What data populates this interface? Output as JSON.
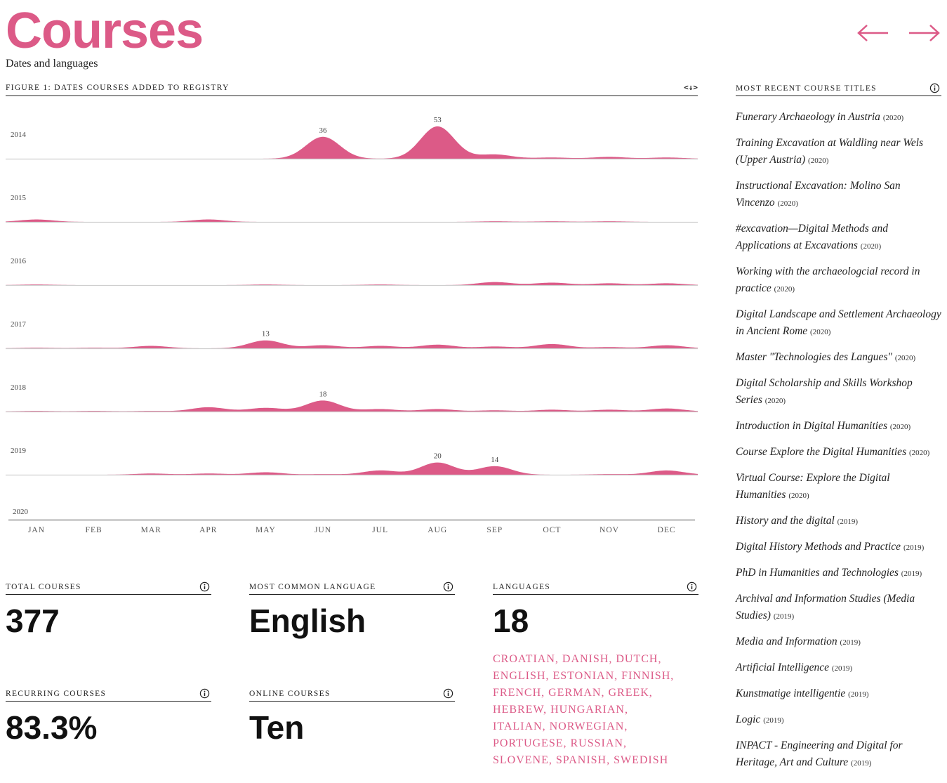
{
  "header": {
    "title": "Courses",
    "subtitle": "Dates and languages"
  },
  "nav": {
    "prev_icon": "arrow-left-icon",
    "next_icon": "arrow-right-icon"
  },
  "figure": {
    "label": "Figure 1: Dates courses added to registry",
    "embed_icon": "<↓>"
  },
  "colors": {
    "accent": "#dc5a87",
    "text": "#222222",
    "baseline": "#cfcfcf"
  },
  "chart_data": {
    "type": "area",
    "title": "",
    "categories": [
      "JAN",
      "FEB",
      "MAR",
      "APR",
      "MAY",
      "JUN",
      "JUL",
      "AUG",
      "SEP",
      "OCT",
      "NOV",
      "DEC"
    ],
    "series": [
      {
        "name": "2014",
        "values": [
          0,
          0,
          0,
          0,
          0,
          36,
          0,
          53,
          7,
          2,
          3,
          2
        ]
      },
      {
        "name": "2015",
        "values": [
          4,
          0,
          0,
          4,
          0,
          0,
          0,
          0,
          1,
          1,
          1,
          0
        ]
      },
      {
        "name": "2016",
        "values": [
          1,
          0,
          0,
          0,
          1,
          0,
          1,
          0,
          5,
          4,
          3,
          3
        ]
      },
      {
        "name": "2017",
        "values": [
          1,
          1,
          4,
          0,
          13,
          5,
          4,
          6,
          3,
          7,
          2,
          5
        ]
      },
      {
        "name": "2018",
        "values": [
          1,
          1,
          1,
          7,
          6,
          18,
          4,
          4,
          2,
          3,
          3,
          5
        ]
      },
      {
        "name": "2019",
        "values": [
          0,
          0,
          2,
          2,
          4,
          1,
          7,
          20,
          14,
          0,
          1,
          7
        ]
      },
      {
        "name": "2020",
        "values": [
          0,
          1,
          1,
          0,
          0,
          0,
          0,
          0,
          0,
          0,
          0,
          0
        ]
      }
    ],
    "peak_labels": [
      {
        "series": "2014",
        "month": "JUN",
        "value": "36"
      },
      {
        "series": "2014",
        "month": "AUG",
        "value": "53"
      },
      {
        "series": "2017",
        "month": "MAY",
        "value": "13"
      },
      {
        "series": "2018",
        "month": "JUN",
        "value": "18"
      },
      {
        "series": "2019",
        "month": "AUG",
        "value": "20"
      },
      {
        "series": "2019",
        "month": "SEP",
        "value": "14"
      }
    ],
    "scale_max": 53,
    "grid": false,
    "legend": "none"
  },
  "stats": {
    "total": {
      "label": "Total courses",
      "value": "377"
    },
    "common_language": {
      "label": "Most common language",
      "value": "English"
    },
    "languages": {
      "label": "Languages",
      "value": "18",
      "list": "Croatian, Danish, Dutch, English, Estonian, Finnish, French, German, Greek, Hebrew, Hungarian, Italian, Norwegian, Portugese, Russian, Slovene, Spanish, Swedish"
    },
    "recurring": {
      "label": "Recurring courses",
      "value": "83.3%"
    },
    "online": {
      "label": "Online courses",
      "value": "Ten"
    }
  },
  "sidebar": {
    "label": "Most recent course titles",
    "courses": [
      {
        "title": "Funerary Archaeology in Austria",
        "year": "(2020)"
      },
      {
        "title": "Training Excavation at Waldling near Wels (Upper Austria)",
        "year": "(2020)"
      },
      {
        "title": "Instructional Excavation: Molino San Vincenzo",
        "year": "(2020)"
      },
      {
        "title": "#excavation—Digital Methods and Applications at Excavations",
        "year": "(2020)"
      },
      {
        "title": "Working with the archaeologcial record in practice",
        "year": "(2020)"
      },
      {
        "title": "Digital Landscape and Settlement Archaeology in Ancient Rome",
        "year": "(2020)"
      },
      {
        "title": "Master \"Technologies des Langues\"",
        "year": "(2020)"
      },
      {
        "title": "Digital Scholarship and Skills Workshop Series",
        "year": "(2020)"
      },
      {
        "title": "Introduction in Digital Humanities",
        "year": "(2020)"
      },
      {
        "title": "Course Explore the Digital Humanities",
        "year": "(2020)"
      },
      {
        "title": "Virtual Course: Explore the Digital Humanities",
        "year": "(2020)"
      },
      {
        "title": "History and the digital",
        "year": "(2019)"
      },
      {
        "title": "Digital History Methods and Practice",
        "year": "(2019)"
      },
      {
        "title": "PhD in Humanities and Technologies",
        "year": "(2019)"
      },
      {
        "title": "Archival and Information Studies (Media Studies)",
        "year": "(2019)"
      },
      {
        "title": "Media and Information",
        "year": "(2019)"
      },
      {
        "title": "Artificial Intelligence",
        "year": "(2019)"
      },
      {
        "title": "Kunstmatige intelligentie",
        "year": "(2019)"
      },
      {
        "title": "Logic",
        "year": "(2019)"
      },
      {
        "title": "INPACT - Engineering and Digital for Heritage, Art and Culture",
        "year": "(2019)"
      }
    ]
  }
}
